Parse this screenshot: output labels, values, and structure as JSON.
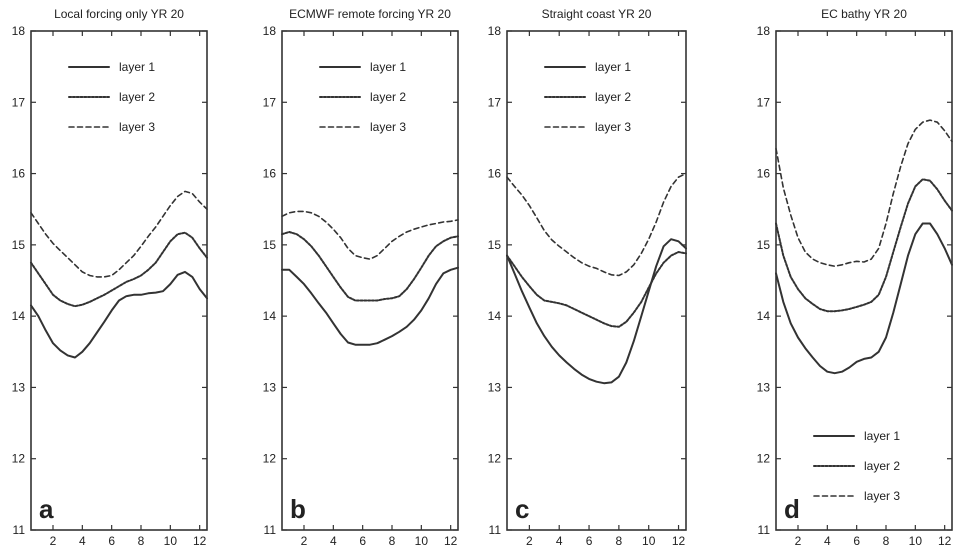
{
  "chart_data": [
    {
      "type": "line",
      "panel_label": "a",
      "title": "Local forcing only YR 20",
      "xlim": [
        0.5,
        12.5
      ],
      "ylim": [
        11,
        18
      ],
      "xticks": [
        2,
        4,
        6,
        8,
        10,
        12
      ],
      "yticks": [
        11,
        12,
        13,
        14,
        15,
        16,
        17,
        18
      ],
      "legend_position": "top",
      "series": [
        {
          "name": "layer 1",
          "style": "solid",
          "x": [
            0.5,
            1,
            1.5,
            2,
            2.5,
            3,
            3.5,
            4,
            4.5,
            5,
            5.5,
            6,
            6.5,
            7,
            7.5,
            8,
            8.5,
            9,
            9.5,
            10,
            10.5,
            11,
            11.5,
            12,
            12.5
          ],
          "y": [
            14.15,
            14.0,
            13.8,
            13.62,
            13.52,
            13.45,
            13.42,
            13.5,
            13.62,
            13.77,
            13.92,
            14.08,
            14.22,
            14.28,
            14.3,
            14.3,
            14.32,
            14.33,
            14.35,
            14.45,
            14.58,
            14.62,
            14.55,
            14.38,
            14.25
          ]
        },
        {
          "name": "layer 2",
          "style": "dotted",
          "x": [
            0.5,
            1,
            1.5,
            2,
            2.5,
            3,
            3.5,
            4,
            4.5,
            5,
            5.5,
            6,
            6.5,
            7,
            7.5,
            8,
            8.5,
            9,
            9.5,
            10,
            10.5,
            11,
            11.5,
            12,
            12.5
          ],
          "y": [
            14.75,
            14.6,
            14.45,
            14.3,
            14.22,
            14.17,
            14.14,
            14.16,
            14.2,
            14.25,
            14.3,
            14.36,
            14.42,
            14.48,
            14.52,
            14.57,
            14.65,
            14.75,
            14.9,
            15.05,
            15.15,
            15.17,
            15.1,
            14.95,
            14.82
          ]
        },
        {
          "name": "layer 3",
          "style": "dashed",
          "x": [
            0.5,
            1,
            1.5,
            2,
            2.5,
            3,
            3.5,
            4,
            4.5,
            5,
            5.5,
            6,
            6.5,
            7,
            7.5,
            8,
            8.5,
            9,
            9.5,
            10,
            10.5,
            11,
            11.5,
            12,
            12.5
          ],
          "y": [
            15.45,
            15.3,
            15.15,
            15.02,
            14.92,
            14.82,
            14.72,
            14.62,
            14.57,
            14.55,
            14.55,
            14.57,
            14.65,
            14.75,
            14.85,
            14.98,
            15.12,
            15.25,
            15.4,
            15.55,
            15.68,
            15.75,
            15.72,
            15.6,
            15.5
          ]
        }
      ]
    },
    {
      "type": "line",
      "panel_label": "b",
      "title": "ECMWF remote forcing YR 20",
      "xlim": [
        0.5,
        12.5
      ],
      "ylim": [
        11,
        18
      ],
      "xticks": [
        2,
        4,
        6,
        8,
        10,
        12
      ],
      "yticks": [
        11,
        12,
        13,
        14,
        15,
        16,
        17,
        18
      ],
      "legend_position": "top",
      "series": [
        {
          "name": "layer 1",
          "style": "solid",
          "x": [
            0.5,
            1,
            1.5,
            2,
            2.5,
            3,
            3.5,
            4,
            4.5,
            5,
            5.5,
            6,
            6.5,
            7,
            7.5,
            8,
            8.5,
            9,
            9.5,
            10,
            10.5,
            11,
            11.5,
            12,
            12.5
          ],
          "y": [
            14.65,
            14.65,
            14.55,
            14.45,
            14.32,
            14.18,
            14.05,
            13.9,
            13.75,
            13.63,
            13.6,
            13.6,
            13.6,
            13.62,
            13.67,
            13.72,
            13.78,
            13.85,
            13.95,
            14.08,
            14.25,
            14.45,
            14.6,
            14.65,
            14.68
          ]
        },
        {
          "name": "layer 2",
          "style": "dotted",
          "x": [
            0.5,
            1,
            1.5,
            2,
            2.5,
            3,
            3.5,
            4,
            4.5,
            5,
            5.5,
            6,
            6.5,
            7,
            7.5,
            8,
            8.5,
            9,
            9.5,
            10,
            10.5,
            11,
            11.5,
            12,
            12.5
          ],
          "y": [
            15.15,
            15.18,
            15.15,
            15.08,
            14.98,
            14.85,
            14.7,
            14.55,
            14.4,
            14.27,
            14.22,
            14.22,
            14.22,
            14.22,
            14.24,
            14.25,
            14.28,
            14.38,
            14.52,
            14.68,
            14.85,
            14.98,
            15.05,
            15.1,
            15.12
          ]
        },
        {
          "name": "layer 3",
          "style": "dashed",
          "x": [
            0.5,
            1,
            1.5,
            2,
            2.5,
            3,
            3.5,
            4,
            4.5,
            5,
            5.5,
            6,
            6.5,
            7,
            7.5,
            8,
            8.5,
            9,
            9.5,
            10,
            10.5,
            11,
            11.5,
            12,
            12.5
          ],
          "y": [
            15.4,
            15.45,
            15.47,
            15.47,
            15.45,
            15.4,
            15.32,
            15.22,
            15.1,
            14.95,
            14.85,
            14.82,
            14.8,
            14.85,
            14.95,
            15.05,
            15.12,
            15.18,
            15.22,
            15.25,
            15.28,
            15.3,
            15.32,
            15.33,
            15.35
          ]
        }
      ]
    },
    {
      "type": "line",
      "panel_label": "c",
      "title": "Straight coast YR 20",
      "xlim": [
        0.5,
        12.5
      ],
      "ylim": [
        11,
        18
      ],
      "xticks": [
        2,
        4,
        6,
        8,
        10,
        12
      ],
      "yticks": [
        11,
        12,
        13,
        14,
        15,
        16,
        17,
        18
      ],
      "legend_position": "top",
      "series": [
        {
          "name": "layer 1",
          "style": "solid",
          "x": [
            0.5,
            1,
            1.5,
            2,
            2.5,
            3,
            3.5,
            4,
            4.5,
            5,
            5.5,
            6,
            6.5,
            7,
            7.5,
            8,
            8.5,
            9,
            9.5,
            10,
            10.5,
            11,
            11.5,
            12,
            12.5
          ],
          "y": [
            14.85,
            14.6,
            14.35,
            14.12,
            13.9,
            13.72,
            13.57,
            13.45,
            13.35,
            13.26,
            13.18,
            13.12,
            13.08,
            13.06,
            13.07,
            13.15,
            13.35,
            13.65,
            14.0,
            14.35,
            14.7,
            14.98,
            15.08,
            15.05,
            14.95
          ]
        },
        {
          "name": "layer 2",
          "style": "dotted",
          "x": [
            0.5,
            1,
            1.5,
            2,
            2.5,
            3,
            3.5,
            4,
            4.5,
            5,
            5.5,
            6,
            6.5,
            7,
            7.5,
            8,
            8.5,
            9,
            9.5,
            10,
            10.5,
            11,
            11.5,
            12,
            12.5
          ],
          "y": [
            14.85,
            14.7,
            14.55,
            14.42,
            14.3,
            14.22,
            14.2,
            14.18,
            14.15,
            14.1,
            14.05,
            14.0,
            13.95,
            13.9,
            13.86,
            13.85,
            13.92,
            14.05,
            14.2,
            14.4,
            14.6,
            14.75,
            14.85,
            14.9,
            14.88
          ]
        },
        {
          "name": "layer 3",
          "style": "dashed",
          "x": [
            0.5,
            1,
            1.5,
            2,
            2.5,
            3,
            3.5,
            4,
            4.5,
            5,
            5.5,
            6,
            6.5,
            7,
            7.5,
            8,
            8.5,
            9,
            9.5,
            10,
            10.5,
            11,
            11.5,
            12,
            12.5
          ],
          "y": [
            15.95,
            15.82,
            15.7,
            15.55,
            15.38,
            15.2,
            15.07,
            14.98,
            14.9,
            14.82,
            14.75,
            14.7,
            14.67,
            14.62,
            14.58,
            14.57,
            14.62,
            14.72,
            14.88,
            15.08,
            15.32,
            15.6,
            15.82,
            15.95,
            16.0
          ]
        }
      ]
    },
    {
      "type": "line",
      "panel_label": "d",
      "title": "EC bathy YR 20",
      "xlim": [
        0.5,
        12.5
      ],
      "ylim": [
        11,
        18
      ],
      "xticks": [
        2,
        4,
        6,
        8,
        10,
        12
      ],
      "yticks": [
        11,
        12,
        13,
        14,
        15,
        16,
        17,
        18
      ],
      "legend_position": "bottom",
      "series": [
        {
          "name": "layer 1",
          "style": "solid",
          "x": [
            0.5,
            1,
            1.5,
            2,
            2.5,
            3,
            3.5,
            4,
            4.5,
            5,
            5.5,
            6,
            6.5,
            7,
            7.5,
            8,
            8.5,
            9,
            9.5,
            10,
            10.5,
            11,
            11.5,
            12,
            12.5
          ],
          "y": [
            14.6,
            14.2,
            13.9,
            13.7,
            13.55,
            13.42,
            13.3,
            13.22,
            13.2,
            13.22,
            13.28,
            13.36,
            13.4,
            13.42,
            13.5,
            13.7,
            14.05,
            14.45,
            14.85,
            15.15,
            15.3,
            15.3,
            15.15,
            14.95,
            14.72
          ]
        },
        {
          "name": "layer 2",
          "style": "dotted",
          "x": [
            0.5,
            1,
            1.5,
            2,
            2.5,
            3,
            3.5,
            4,
            4.5,
            5,
            5.5,
            6,
            6.5,
            7,
            7.5,
            8,
            8.5,
            9,
            9.5,
            10,
            10.5,
            11,
            11.5,
            12,
            12.5
          ],
          "y": [
            15.3,
            14.85,
            14.55,
            14.38,
            14.25,
            14.17,
            14.1,
            14.07,
            14.07,
            14.08,
            14.1,
            14.13,
            14.16,
            14.2,
            14.3,
            14.55,
            14.9,
            15.25,
            15.58,
            15.82,
            15.92,
            15.9,
            15.78,
            15.62,
            15.48
          ]
        },
        {
          "name": "layer 3",
          "style": "dashed",
          "x": [
            0.5,
            1,
            1.5,
            2,
            2.5,
            3,
            3.5,
            4,
            4.5,
            5,
            5.5,
            6,
            6.5,
            7,
            7.5,
            8,
            8.5,
            9,
            9.5,
            10,
            10.5,
            11,
            11.5,
            12,
            12.5
          ],
          "y": [
            16.35,
            15.8,
            15.42,
            15.1,
            14.9,
            14.8,
            14.75,
            14.72,
            14.7,
            14.72,
            14.75,
            14.77,
            14.76,
            14.8,
            14.95,
            15.3,
            15.72,
            16.1,
            16.42,
            16.62,
            16.72,
            16.75,
            16.72,
            16.6,
            16.45
          ]
        }
      ]
    }
  ]
}
